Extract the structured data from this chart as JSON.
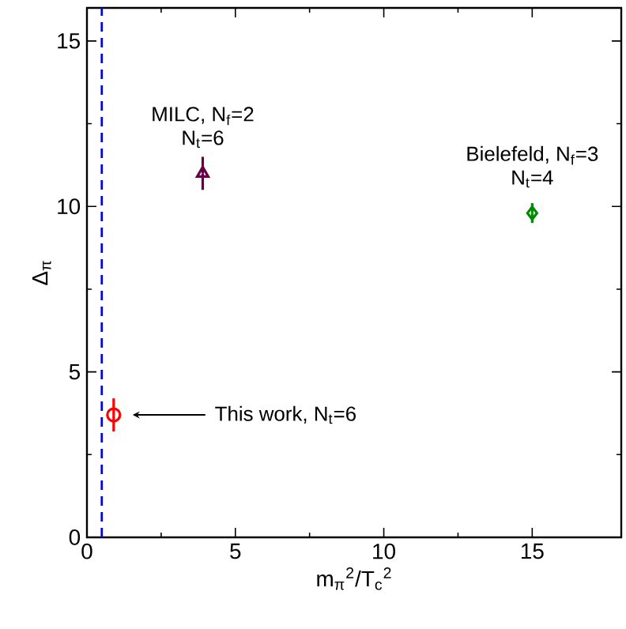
{
  "chart_data": {
    "type": "scatter",
    "xlabel": "m$_{π}$$^{2}$/T$_{c}$$^{2}$",
    "ylabel": "Δ$_{π}$",
    "xlim": [
      0,
      18
    ],
    "ylim": [
      0,
      16
    ],
    "xticks": [
      0,
      5,
      10,
      15
    ],
    "yticks": [
      0,
      5,
      10,
      15
    ],
    "grid": false,
    "series": [
      {
        "color": "#ff0000",
        "marker": "circle",
        "x": [
          0.9
        ],
        "values": [
          3.7
        ],
        "errors": [
          0.5
        ]
      },
      {
        "color": "#660044",
        "marker": "triangle",
        "x": [
          3.9
        ],
        "values": [
          11.0
        ],
        "errors": [
          0.5
        ]
      },
      {
        "color": "#008800",
        "marker": "diamond",
        "x": [
          15.0
        ],
        "values": [
          9.8
        ],
        "errors": [
          0.3
        ]
      }
    ],
    "ref_lines": [
      {
        "axis": "x",
        "value": 0.5,
        "color": "#0000ff",
        "line_style": "dashed"
      }
    ],
    "annotations": [
      {
        "text": "MILC, N$_{f}$=2",
        "x": 3.9,
        "y": 11.0
      },
      "N$_{t}$=6",
      {
        "text": "Bielefeld, N$_{f}$=3",
        "x": 15.0,
        "y": 9.8
      },
      "N$_{t}$=4",
      "This work, N$_{t}$=6"
    ]
  }
}
